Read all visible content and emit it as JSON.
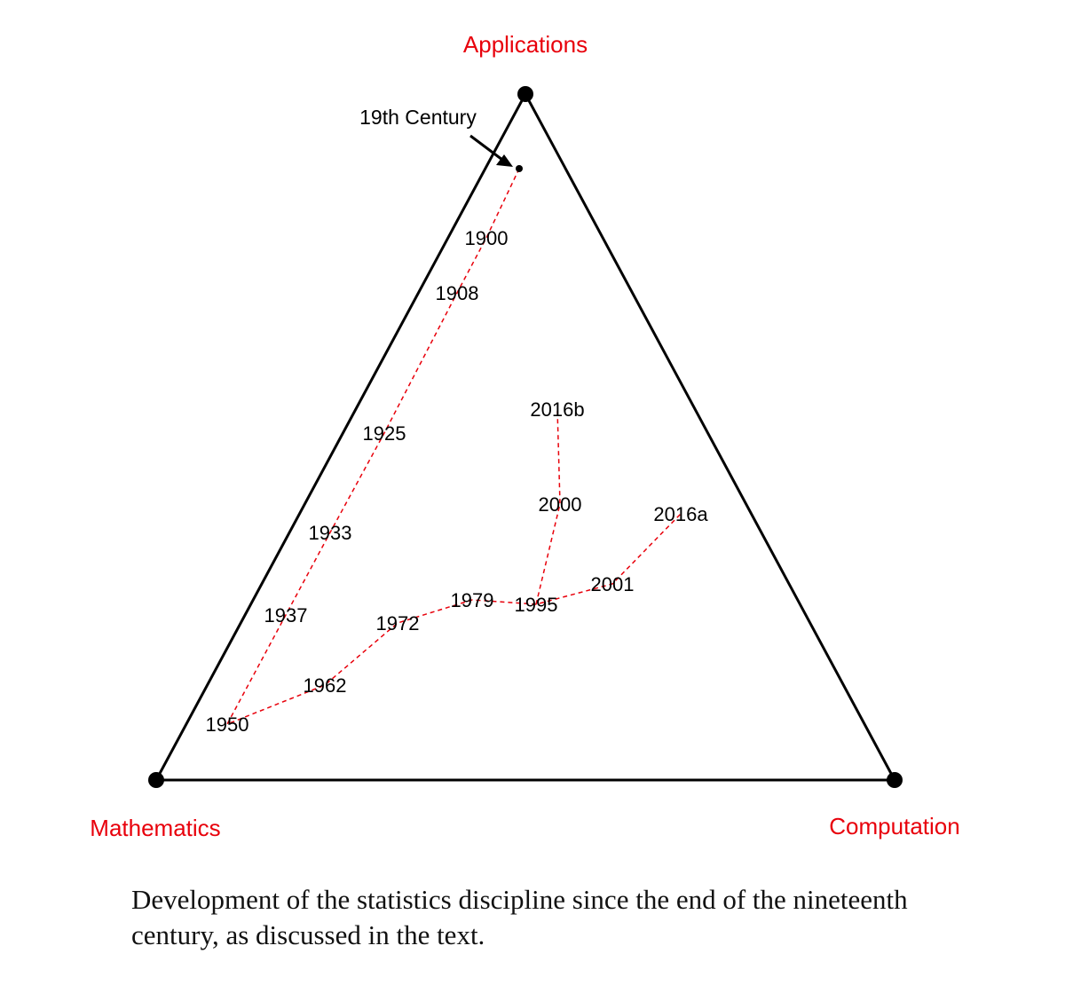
{
  "diagram": {
    "vertices": {
      "top": "Applications",
      "bottom_left": "Mathematics",
      "bottom_right": "Computation"
    },
    "annotation": "19th Century",
    "paths": [
      [
        "19th Century",
        "1900",
        "1908",
        "1925",
        "1933",
        "1937",
        "1950",
        "1962",
        "1972",
        "1979",
        "1995",
        "2001",
        "2016a"
      ],
      [
        "1995",
        "2000",
        "2016b"
      ]
    ],
    "points": [
      "1900",
      "1908",
      "1925",
      "1933",
      "1937",
      "1950",
      "1962",
      "1972",
      "1979",
      "1995",
      "2000",
      "2001",
      "2016a",
      "2016b"
    ],
    "colors": {
      "vertex_label": "#e8000b",
      "path": "#e8000b",
      "triangle": "#000000"
    }
  },
  "caption": "Development of the statistics discipline since the end of the nineteenth century, as discussed in the text."
}
